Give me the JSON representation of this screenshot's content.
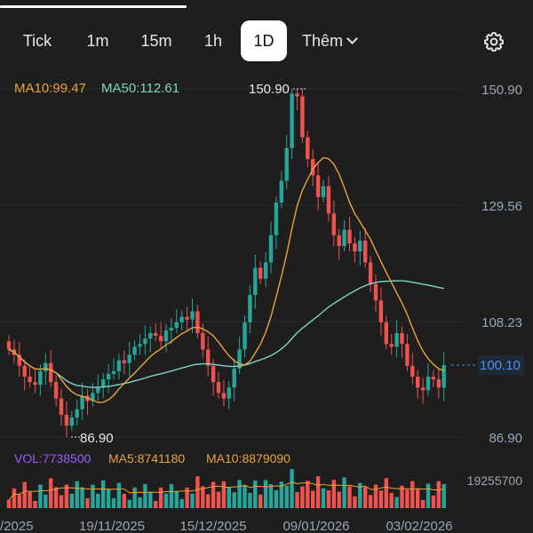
{
  "timeframe_tabs": {
    "tick": "Tick",
    "m1": "1m",
    "m15": "15m",
    "h1": "1h",
    "d1": "1D",
    "more": "Thêm"
  },
  "active_tab": "1D",
  "icons": {
    "settings": "gear-icon",
    "more": "chevron-down-icon"
  },
  "colors": {
    "up": "#26a69a",
    "down": "#ef5350",
    "ma10": "#e8a33d",
    "ma50": "#7fd3c6",
    "vol_label": "#9b59ff",
    "last_price": "#4e8fe6"
  },
  "price_indicators": {
    "ma10": "MA10:99.47",
    "ma50": "MA50:112.61"
  },
  "volume_indicators": {
    "vol": "VOL:7738500",
    "ma5": "MA5:8741180",
    "ma10": "MA10:8879090"
  },
  "price_axis": [
    "150.90",
    "129.56",
    "108.23",
    "86.90"
  ],
  "volume_axis": "19255700",
  "last_price": "100.10",
  "high_marker": "150.90",
  "low_marker": "86.90",
  "date_axis": [
    "/2025",
    "19/11/2025",
    "15/12/2025",
    "09/01/2026",
    "03/02/2026"
  ],
  "chart_data": {
    "type": "candlestick",
    "y_range": [
      86.9,
      150.9
    ],
    "closes": [
      103.0,
      102.0,
      100.0,
      98.0,
      97.0,
      96.5,
      99.0,
      100.5,
      97.0,
      94.0,
      91.0,
      89.0,
      90.5,
      92.0,
      94.5,
      93.5,
      95.0,
      96.0,
      97.5,
      98.5,
      99.0,
      101.0,
      100.5,
      102.0,
      103.5,
      104.0,
      105.0,
      106.0,
      105.5,
      104.5,
      106.5,
      107.0,
      108.0,
      109.0,
      108.5,
      110.0,
      106.0,
      103.0,
      100.0,
      97.0,
      95.0,
      94.0,
      96.0,
      99.5,
      103.0,
      108.0,
      113.0,
      118.0,
      116.0,
      119.0,
      124.0,
      130.0,
      134.0,
      140.0,
      150.0,
      149.5,
      142.0,
      138.0,
      135.0,
      131.0,
      133.0,
      128.0,
      124.0,
      122.0,
      125.0,
      122.5,
      121.0,
      123.0,
      119.0,
      115.0,
      112.0,
      108.0,
      104.0,
      103.5,
      106.0,
      104.0,
      100.0,
      98.0,
      96.0,
      95.5,
      98.0,
      97.5,
      96.0,
      100.1
    ]
  }
}
